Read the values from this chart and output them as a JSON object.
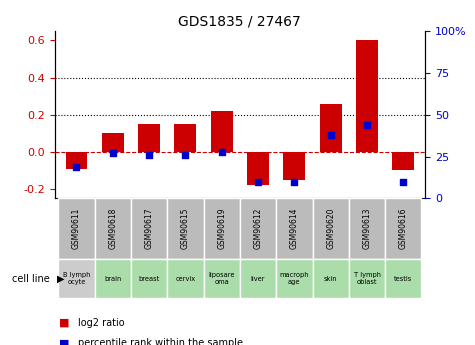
{
  "title": "GDS1835 / 27467",
  "samples": [
    "GSM90611",
    "GSM90618",
    "GSM90617",
    "GSM90615",
    "GSM90619",
    "GSM90612",
    "GSM90614",
    "GSM90620",
    "GSM90613",
    "GSM90616"
  ],
  "cell_lines": [
    "B lymph\nocyte",
    "brain",
    "breast",
    "cervix",
    "liposare\noma",
    "liver",
    "macroph\nage",
    "skin",
    "T lymph\noblast",
    "testis"
  ],
  "cell_line_colors": [
    "#cccccc",
    "#aaddaa",
    "#aaddaa",
    "#aaddaa",
    "#aaddaa",
    "#aaddaa",
    "#aaddaa",
    "#aaddaa",
    "#aaddaa",
    "#aaddaa"
  ],
  "sample_box_color": "#bbbbbb",
  "log2_ratio": [
    -0.09,
    0.1,
    0.15,
    0.15,
    0.22,
    -0.18,
    -0.15,
    0.26,
    0.6,
    -0.1
  ],
  "percentile_rank": [
    19,
    27,
    26,
    26,
    28,
    10,
    10,
    38,
    44,
    10
  ],
  "bar_color": "#cc0000",
  "dot_color": "#0000cc",
  "ylim_left": [
    -0.25,
    0.65
  ],
  "ylim_right": [
    0,
    100
  ],
  "yticks_left": [
    -0.2,
    0.0,
    0.2,
    0.4,
    0.6
  ],
  "yticks_right": [
    0,
    25,
    50,
    75,
    100
  ],
  "hline_zero_color": "#cc0000",
  "hline_dotted_color": "#000000",
  "legend_bar_label": "log2 ratio",
  "legend_dot_label": "percentile rank within the sample",
  "cell_line_label": "cell line"
}
